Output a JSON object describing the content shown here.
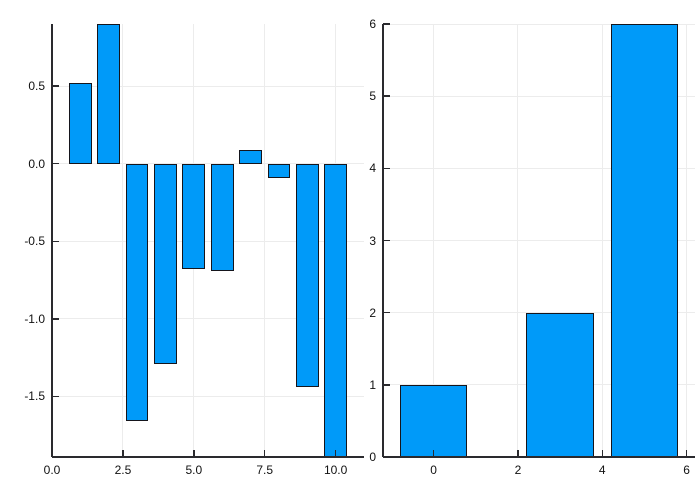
{
  "style": {
    "page_background": "#ffffff",
    "bar_fill": "#009af9",
    "bar_stroke": "#15151c",
    "axis_color": "#2a2a2e",
    "grid_color": "#ececec",
    "label_color": "#111111"
  },
  "chart_data": [
    {
      "id": "left-bar-chart",
      "type": "bar",
      "title": "",
      "xlabel": "",
      "ylabel": "",
      "legend": "none",
      "grid": true,
      "x": [
        1,
        2,
        3,
        4,
        5,
        6,
        7,
        8,
        9,
        10
      ],
      "values": [
        0.52,
        0.9,
        -1.66,
        -1.29,
        -0.68,
        -0.69,
        0.09,
        -0.09,
        -1.44,
        -1.89
      ],
      "bar_width": 0.8,
      "baseline": 0,
      "xlim": [
        0.0,
        11.0
      ],
      "ylim": [
        -1.89,
        0.9
      ],
      "xticks": {
        "values": [
          0.0,
          2.5,
          5.0,
          7.5,
          10.0
        ],
        "labels": [
          "0.0",
          "2.5",
          "5.0",
          "7.5",
          "10.0"
        ]
      },
      "yticks": {
        "values": [
          0.5,
          0.0,
          -0.5,
          -1.0,
          -1.5
        ],
        "labels": [
          "0.5",
          "0.0",
          "-0.5",
          "-1.0",
          "-1.5"
        ]
      }
    },
    {
      "id": "right-bar-chart",
      "type": "bar",
      "title": "",
      "xlabel": "",
      "ylabel": "",
      "legend": "none",
      "grid": true,
      "x": [
        0,
        3,
        5
      ],
      "values": [
        1,
        2,
        6
      ],
      "bar_width": 1.6,
      "baseline": 0,
      "xlim": [
        -1.2,
        6.2
      ],
      "ylim": [
        0,
        6
      ],
      "xticks": {
        "values": [
          0,
          2,
          4,
          6
        ],
        "labels": [
          "0",
          "2",
          "4",
          "6"
        ]
      },
      "yticks": {
        "values": [
          0,
          1,
          2,
          3,
          4,
          5,
          6
        ],
        "labels": [
          "0",
          "1",
          "2",
          "3",
          "4",
          "5",
          "6"
        ]
      }
    }
  ]
}
